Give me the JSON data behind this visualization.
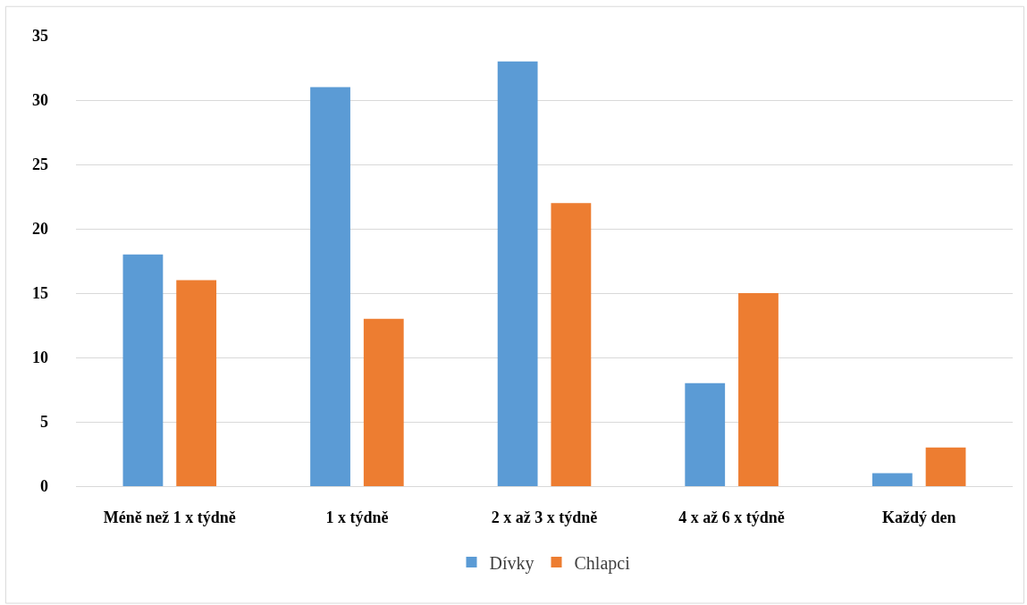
{
  "chart_data": {
    "type": "bar",
    "categories": [
      "Méně než 1 x týdně",
      "1 x týdně",
      "2 x až 3 x týdně",
      "4 x až 6 x týdně",
      "Každý den"
    ],
    "series": [
      {
        "name": "Dívky",
        "color": "#5b9bd5",
        "values": [
          18,
          31,
          33,
          8,
          1
        ]
      },
      {
        "name": "Chlapci",
        "color": "#ed7d31",
        "values": [
          16,
          13,
          22,
          15,
          3
        ]
      }
    ],
    "ylim": [
      0,
      35
    ],
    "yticks": [
      0,
      5,
      10,
      15,
      20,
      25,
      30,
      35
    ],
    "grid": "y",
    "legend": "bottom"
  }
}
